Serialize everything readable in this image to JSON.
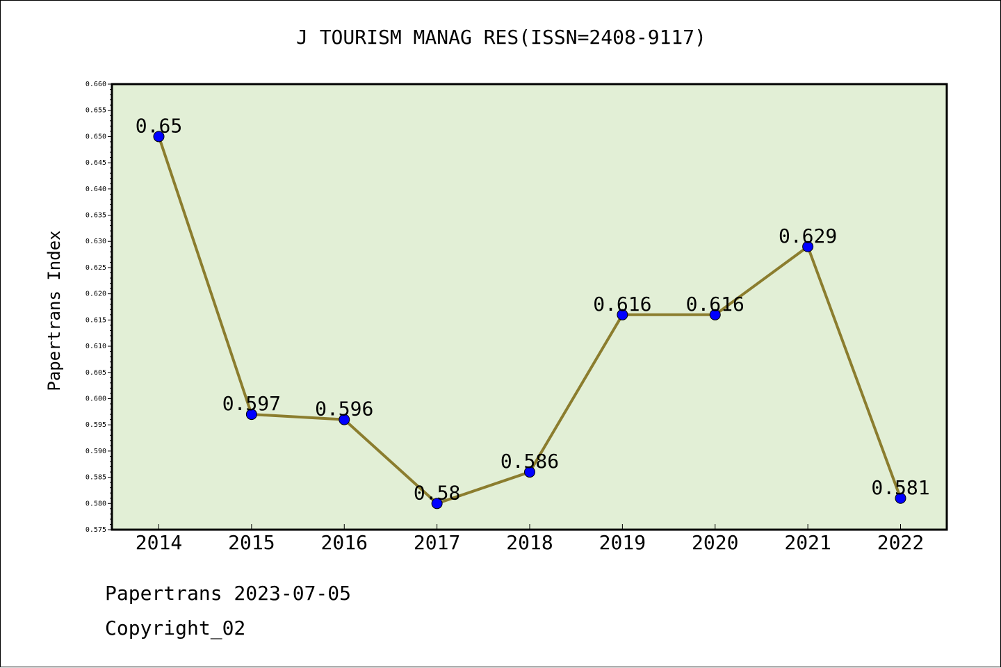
{
  "chart_data": {
    "type": "line",
    "title": "J TOURISM MANAG RES(ISSN=2408-9117)",
    "ylabel": "Papertrans Index",
    "xlabel": "",
    "categories": [
      "2014",
      "2015",
      "2016",
      "2017",
      "2018",
      "2019",
      "2020",
      "2021",
      "2022"
    ],
    "series": [
      {
        "values": [
          0.65,
          0.597,
          0.596,
          0.58,
          0.586,
          0.616,
          0.616,
          0.629,
          0.581
        ],
        "labels": [
          "0.65",
          "0.597",
          "0.596",
          "0.58",
          "0.586",
          "0.616",
          "0.616",
          "0.629",
          "0.581"
        ]
      }
    ],
    "ylim": [
      0.575,
      0.66
    ],
    "ytick_step": 0.005,
    "grid": false,
    "legend": "none",
    "colors": {
      "plot_background": "#e2efd6",
      "line": "#8b7d2e",
      "marker": "#0000ff"
    }
  },
  "footer": {
    "line1": "Papertrans 2023-07-05",
    "line2": "Copyright_02"
  }
}
